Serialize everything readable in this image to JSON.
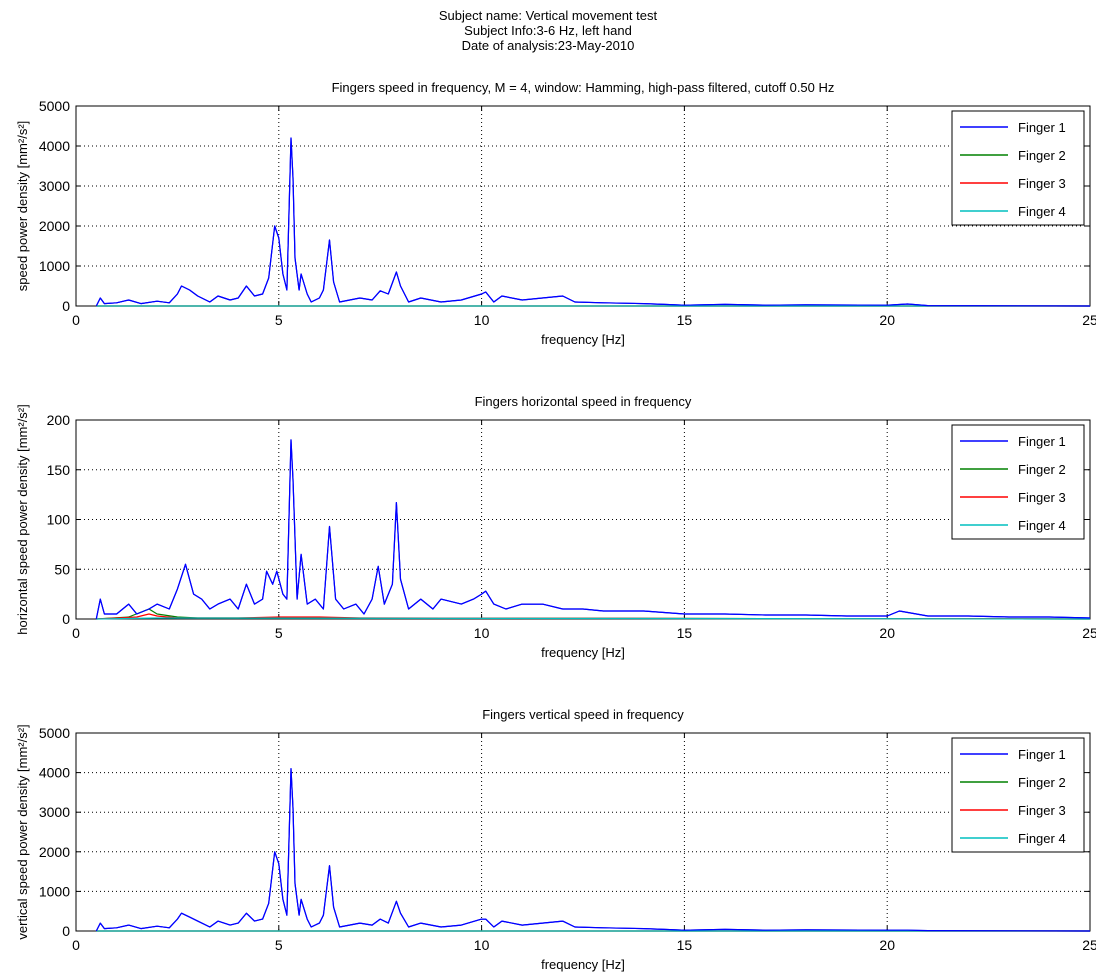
{
  "header": {
    "subject_name": "Subject name: Vertical movement test",
    "subject_info": "Subject Info:3-6 Hz, left hand",
    "analysis_date": "Date of analysis:23-May-2010"
  },
  "colors": {
    "finger1": "#0000ff",
    "finger2": "#008000",
    "finger3": "#ff0000",
    "finger4": "#00bfbf"
  },
  "chart_data": [
    {
      "type": "line",
      "title": "Fingers speed in frequency, M = 4, window: Hamming, high-pass filtered, cutoff 0.50 Hz",
      "xlabel": "frequency [Hz]",
      "ylabel": "speed power density [mm²/s²]",
      "xlim": [
        0,
        25
      ],
      "ylim": [
        0,
        5000
      ],
      "xticks": [
        "0",
        "5",
        "10",
        "15",
        "20",
        "25"
      ],
      "yticks": [
        "0",
        "1000",
        "2000",
        "3000",
        "4000",
        "5000"
      ],
      "grid": true,
      "legend": "top-right",
      "series": [
        {
          "name": "Finger 1",
          "points": [
            [
              0.5,
              0
            ],
            [
              0.6,
              200
            ],
            [
              0.7,
              60
            ],
            [
              1.0,
              80
            ],
            [
              1.3,
              150
            ],
            [
              1.6,
              60
            ],
            [
              2.0,
              120
            ],
            [
              2.3,
              80
            ],
            [
              2.5,
              300
            ],
            [
              2.6,
              500
            ],
            [
              2.8,
              400
            ],
            [
              3.0,
              250
            ],
            [
              3.3,
              100
            ],
            [
              3.5,
              250
            ],
            [
              3.8,
              150
            ],
            [
              4.0,
              200
            ],
            [
              4.2,
              500
            ],
            [
              4.4,
              250
            ],
            [
              4.6,
              300
            ],
            [
              4.75,
              700
            ],
            [
              4.9,
              2000
            ],
            [
              5.0,
              1700
            ],
            [
              5.1,
              800
            ],
            [
              5.2,
              400
            ],
            [
              5.3,
              4200
            ],
            [
              5.35,
              3200
            ],
            [
              5.4,
              1200
            ],
            [
              5.5,
              400
            ],
            [
              5.55,
              800
            ],
            [
              5.7,
              300
            ],
            [
              5.8,
              100
            ],
            [
              6.0,
              200
            ],
            [
              6.1,
              400
            ],
            [
              6.25,
              1650
            ],
            [
              6.35,
              600
            ],
            [
              6.5,
              100
            ],
            [
              7.0,
              200
            ],
            [
              7.3,
              150
            ],
            [
              7.5,
              380
            ],
            [
              7.7,
              300
            ],
            [
              7.9,
              850
            ],
            [
              8.0,
              500
            ],
            [
              8.2,
              100
            ],
            [
              8.5,
              200
            ],
            [
              9.0,
              100
            ],
            [
              9.5,
              150
            ],
            [
              10.0,
              300
            ],
            [
              10.1,
              350
            ],
            [
              10.3,
              100
            ],
            [
              10.5,
              250
            ],
            [
              11.0,
              150
            ],
            [
              11.5,
              200
            ],
            [
              12.0,
              250
            ],
            [
              12.3,
              100
            ],
            [
              13.0,
              80
            ],
            [
              14.0,
              60
            ],
            [
              14.5,
              40
            ],
            [
              15.0,
              20
            ],
            [
              16.0,
              40
            ],
            [
              17.0,
              20
            ],
            [
              18.0,
              30
            ],
            [
              20.0,
              20
            ],
            [
              20.5,
              50
            ],
            [
              21.0,
              10
            ],
            [
              25.0,
              0
            ]
          ]
        },
        {
          "name": "Finger 2",
          "points": [
            [
              0.5,
              0
            ],
            [
              25.0,
              0
            ]
          ]
        },
        {
          "name": "Finger 3",
          "points": [
            [
              0.5,
              0
            ],
            [
              25.0,
              0
            ]
          ]
        },
        {
          "name": "Finger 4",
          "points": [
            [
              0.5,
              0
            ],
            [
              25.0,
              0
            ]
          ]
        }
      ]
    },
    {
      "type": "line",
      "title": "Fingers horizontal speed in frequency",
      "xlabel": "frequency [Hz]",
      "ylabel": "horizontal speed power density [mm²/s²]",
      "xlim": [
        0,
        25
      ],
      "ylim": [
        0,
        200
      ],
      "xticks": [
        "0",
        "5",
        "10",
        "15",
        "20",
        "25"
      ],
      "yticks": [
        "0",
        "50",
        "100",
        "150",
        "200"
      ],
      "grid": true,
      "legend": "top-right",
      "series": [
        {
          "name": "Finger 1",
          "points": [
            [
              0.5,
              0
            ],
            [
              0.6,
              20
            ],
            [
              0.7,
              5
            ],
            [
              1.0,
              5
            ],
            [
              1.3,
              15
            ],
            [
              1.5,
              5
            ],
            [
              1.8,
              10
            ],
            [
              2.0,
              15
            ],
            [
              2.3,
              10
            ],
            [
              2.5,
              30
            ],
            [
              2.7,
              55
            ],
            [
              2.9,
              25
            ],
            [
              3.1,
              20
            ],
            [
              3.3,
              10
            ],
            [
              3.5,
              15
            ],
            [
              3.8,
              20
            ],
            [
              4.0,
              10
            ],
            [
              4.2,
              35
            ],
            [
              4.4,
              15
            ],
            [
              4.6,
              20
            ],
            [
              4.7,
              48
            ],
            [
              4.85,
              35
            ],
            [
              4.95,
              48
            ],
            [
              5.1,
              25
            ],
            [
              5.2,
              20
            ],
            [
              5.3,
              180
            ],
            [
              5.35,
              140
            ],
            [
              5.45,
              20
            ],
            [
              5.55,
              65
            ],
            [
              5.7,
              15
            ],
            [
              5.9,
              20
            ],
            [
              6.1,
              10
            ],
            [
              6.25,
              93
            ],
            [
              6.4,
              20
            ],
            [
              6.6,
              10
            ],
            [
              6.9,
              15
            ],
            [
              7.1,
              5
            ],
            [
              7.3,
              20
            ],
            [
              7.45,
              53
            ],
            [
              7.6,
              15
            ],
            [
              7.8,
              35
            ],
            [
              7.9,
              117
            ],
            [
              8.0,
              40
            ],
            [
              8.2,
              10
            ],
            [
              8.5,
              20
            ],
            [
              8.8,
              10
            ],
            [
              9.0,
              20
            ],
            [
              9.5,
              15
            ],
            [
              9.8,
              20
            ],
            [
              10.0,
              25
            ],
            [
              10.1,
              28
            ],
            [
              10.3,
              15
            ],
            [
              10.6,
              10
            ],
            [
              11.0,
              15
            ],
            [
              11.5,
              15
            ],
            [
              12.0,
              10
            ],
            [
              12.5,
              10
            ],
            [
              13.0,
              8
            ],
            [
              14.0,
              8
            ],
            [
              15.0,
              5
            ],
            [
              16.0,
              5
            ],
            [
              17.0,
              4
            ],
            [
              18.0,
              4
            ],
            [
              19.0,
              3
            ],
            [
              20.0,
              3
            ],
            [
              20.3,
              8
            ],
            [
              21.0,
              3
            ],
            [
              22.0,
              3
            ],
            [
              23.0,
              2
            ],
            [
              24.0,
              2
            ],
            [
              25.0,
              1
            ]
          ]
        },
        {
          "name": "Finger 2",
          "points": [
            [
              0.5,
              0
            ],
            [
              1.3,
              2
            ],
            [
              1.8,
              10
            ],
            [
              2.0,
              5
            ],
            [
              2.5,
              2
            ],
            [
              3.0,
              1
            ],
            [
              4.0,
              1
            ],
            [
              6.0,
              1
            ],
            [
              25.0,
              0
            ]
          ]
        },
        {
          "name": "Finger 3",
          "points": [
            [
              0.5,
              0
            ],
            [
              1.5,
              2
            ],
            [
              1.8,
              5
            ],
            [
              2.0,
              3
            ],
            [
              2.5,
              1
            ],
            [
              4.0,
              1
            ],
            [
              5.0,
              2
            ],
            [
              6.0,
              2
            ],
            [
              7.0,
              1
            ],
            [
              25.0,
              0
            ]
          ]
        },
        {
          "name": "Finger 4",
          "points": [
            [
              0.5,
              0
            ],
            [
              2.0,
              1
            ],
            [
              25.0,
              0
            ]
          ]
        }
      ]
    },
    {
      "type": "line",
      "title": "Fingers vertical speed in frequency",
      "xlabel": "frequency [Hz]",
      "ylabel": "vertical speed power density [mm²/s²]",
      "xlim": [
        0,
        25
      ],
      "ylim": [
        0,
        5000
      ],
      "xticks": [
        "0",
        "5",
        "10",
        "15",
        "20",
        "25"
      ],
      "yticks": [
        "0",
        "1000",
        "2000",
        "3000",
        "4000",
        "5000"
      ],
      "grid": true,
      "legend": "top-right",
      "series": [
        {
          "name": "Finger 1",
          "points": [
            [
              0.5,
              0
            ],
            [
              0.6,
              200
            ],
            [
              0.7,
              60
            ],
            [
              1.0,
              80
            ],
            [
              1.3,
              150
            ],
            [
              1.6,
              60
            ],
            [
              2.0,
              120
            ],
            [
              2.3,
              80
            ],
            [
              2.5,
              300
            ],
            [
              2.6,
              450
            ],
            [
              2.8,
              350
            ],
            [
              3.0,
              250
            ],
            [
              3.3,
              100
            ],
            [
              3.5,
              250
            ],
            [
              3.8,
              150
            ],
            [
              4.0,
              200
            ],
            [
              4.2,
              450
            ],
            [
              4.4,
              250
            ],
            [
              4.6,
              300
            ],
            [
              4.75,
              700
            ],
            [
              4.9,
              2000
            ],
            [
              5.0,
              1700
            ],
            [
              5.1,
              800
            ],
            [
              5.2,
              400
            ],
            [
              5.3,
              4100
            ],
            [
              5.35,
              3100
            ],
            [
              5.4,
              1200
            ],
            [
              5.5,
              400
            ],
            [
              5.55,
              800
            ],
            [
              5.7,
              300
            ],
            [
              5.8,
              100
            ],
            [
              6.0,
              200
            ],
            [
              6.1,
              400
            ],
            [
              6.25,
              1650
            ],
            [
              6.35,
              600
            ],
            [
              6.5,
              100
            ],
            [
              7.0,
              200
            ],
            [
              7.3,
              150
            ],
            [
              7.5,
              300
            ],
            [
              7.7,
              200
            ],
            [
              7.9,
              750
            ],
            [
              8.0,
              450
            ],
            [
              8.2,
              100
            ],
            [
              8.5,
              200
            ],
            [
              9.0,
              100
            ],
            [
              9.5,
              150
            ],
            [
              10.0,
              300
            ],
            [
              10.1,
              300
            ],
            [
              10.3,
              100
            ],
            [
              10.5,
              250
            ],
            [
              11.0,
              150
            ],
            [
              11.5,
              200
            ],
            [
              12.0,
              250
            ],
            [
              12.3,
              100
            ],
            [
              13.0,
              80
            ],
            [
              14.0,
              60
            ],
            [
              14.5,
              40
            ],
            [
              15.0,
              20
            ],
            [
              16.0,
              40
            ],
            [
              17.0,
              20
            ],
            [
              18.0,
              30
            ],
            [
              20.0,
              20
            ],
            [
              20.5,
              20
            ],
            [
              21.0,
              10
            ],
            [
              25.0,
              0
            ]
          ]
        },
        {
          "name": "Finger 2",
          "points": [
            [
              0.5,
              0
            ],
            [
              25.0,
              0
            ]
          ]
        },
        {
          "name": "Finger 3",
          "points": [
            [
              0.5,
              0
            ],
            [
              25.0,
              0
            ]
          ]
        },
        {
          "name": "Finger 4",
          "points": [
            [
              0.5,
              0
            ],
            [
              25.0,
              0
            ]
          ]
        }
      ]
    }
  ]
}
